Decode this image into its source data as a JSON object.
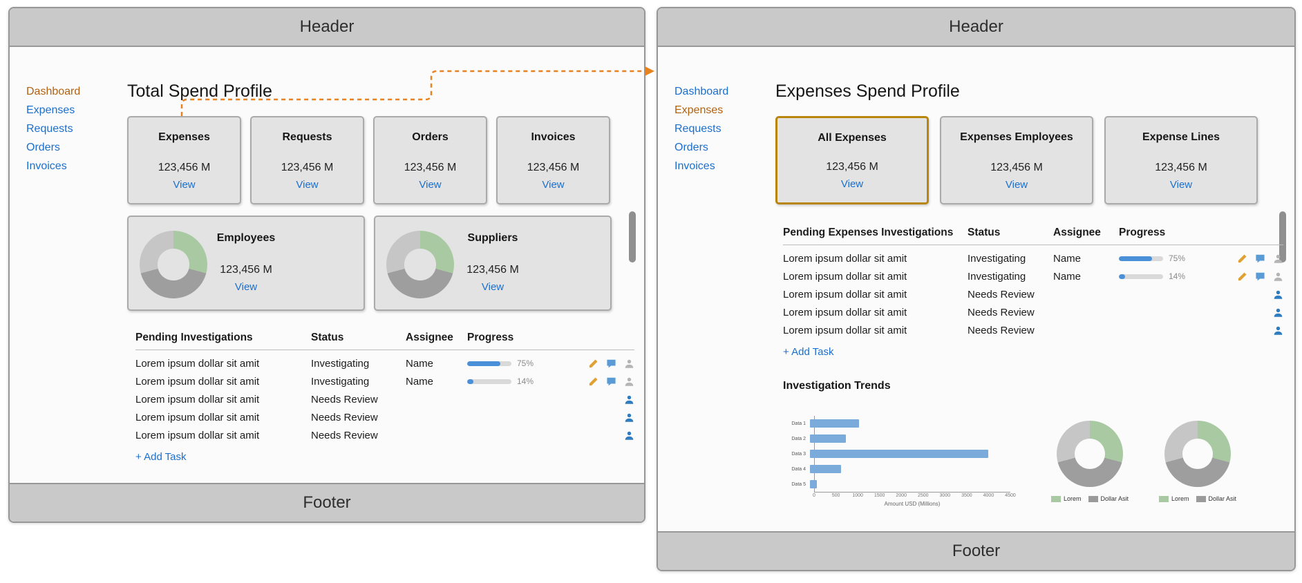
{
  "colors": {
    "link_blue": "#1a6fce",
    "active_nav_orange": "#b2620e",
    "highlight_card_border": "#b8860b",
    "progress_blue": "#4a90d9",
    "bar_blue": "#7aabdb",
    "donut_green": "#a9c9a2",
    "donut_gray": "#9a9a9a",
    "arrow_orange": "#e8821e"
  },
  "left_panel": {
    "header_label": "Header",
    "footer_label": "Footer",
    "sidebar": {
      "items": [
        {
          "label": "Dashboard",
          "active": true
        },
        {
          "label": "Expenses",
          "active": false
        },
        {
          "label": "Requests",
          "active": false
        },
        {
          "label": "Orders",
          "active": false
        },
        {
          "label": "Invoices",
          "active": false
        }
      ]
    },
    "title": "Total Spend Profile",
    "stat_cards": [
      {
        "title": "Expenses",
        "value": "123,456 M",
        "link": "View"
      },
      {
        "title": "Requests",
        "value": "123,456 M",
        "link": "View"
      },
      {
        "title": "Orders",
        "value": "123,456 M",
        "link": "View"
      },
      {
        "title": "Invoices",
        "value": "123,456 M",
        "link": "View"
      }
    ],
    "donut_cards": [
      {
        "title": "Employees",
        "value": "123,456 M",
        "link": "View"
      },
      {
        "title": "Suppliers",
        "value": "123,456 M",
        "link": "View"
      }
    ],
    "table": {
      "headers": [
        "Pending Investigations",
        "Status",
        "Assignee",
        "Progress"
      ],
      "rows": [
        {
          "task": "Lorem ipsum dollar sit amit",
          "status": "Investigating",
          "assignee": "Name",
          "progress": 75,
          "progress_label": "75%"
        },
        {
          "task": "Lorem ipsum dollar sit amit",
          "status": "Investigating",
          "assignee": "Name",
          "progress": 14,
          "progress_label": "14%"
        },
        {
          "task": "Lorem ipsum dollar sit amit",
          "status": "Needs Review",
          "assignee": "",
          "progress": null,
          "progress_label": ""
        },
        {
          "task": "Lorem ipsum dollar sit amit",
          "status": "Needs Review",
          "assignee": "",
          "progress": null,
          "progress_label": ""
        },
        {
          "task": "Lorem ipsum dollar sit amit",
          "status": "Needs Review",
          "assignee": "",
          "progress": null,
          "progress_label": ""
        }
      ],
      "add_task_label": "+ Add Task"
    }
  },
  "right_panel": {
    "header_label": "Header",
    "footer_label": "Footer",
    "sidebar": {
      "items": [
        {
          "label": "Dashboard",
          "active": false
        },
        {
          "label": "Expenses",
          "active": true
        },
        {
          "label": "Requests",
          "active": false
        },
        {
          "label": "Orders",
          "active": false
        },
        {
          "label": "Invoices",
          "active": false
        }
      ]
    },
    "title": "Expenses Spend Profile",
    "stat_cards": [
      {
        "title": "All Expenses",
        "value": "123,456 M",
        "link": "View",
        "highlighted": true
      },
      {
        "title": "Expenses Employees",
        "value": "123,456 M",
        "link": "View",
        "highlighted": false
      },
      {
        "title": "Expense Lines",
        "value": "123,456 M",
        "link": "View",
        "highlighted": false
      }
    ],
    "table": {
      "headers": [
        "Pending Expenses Investigations",
        "Status",
        "Assignee",
        "Progress"
      ],
      "rows": [
        {
          "task": "Lorem ipsum dollar sit amit",
          "status": "Investigating",
          "assignee": "Name",
          "progress": 75,
          "progress_label": "75%"
        },
        {
          "task": "Lorem ipsum dollar sit amit",
          "status": "Investigating",
          "assignee": "Name",
          "progress": 14,
          "progress_label": "14%"
        },
        {
          "task": "Lorem ipsum dollar sit amit",
          "status": "Needs Review",
          "assignee": "",
          "progress": null,
          "progress_label": ""
        },
        {
          "task": "Lorem ipsum dollar sit amit",
          "status": "Needs Review",
          "assignee": "",
          "progress": null,
          "progress_label": ""
        },
        {
          "task": "Lorem ipsum dollar sit amit",
          "status": "Needs Review",
          "assignee": "",
          "progress": null,
          "progress_label": ""
        }
      ],
      "add_task_label": "+ Add Task"
    },
    "trends": {
      "title": "Investigation Trends"
    }
  },
  "chart_data": [
    {
      "type": "bar",
      "orientation": "horizontal",
      "categories": [
        "Data 1",
        "Data 2",
        "Data 3",
        "Data 4",
        "Data 5"
      ],
      "values": [
        1100,
        800,
        4000,
        700,
        150
      ],
      "title": "",
      "xlabel": "Amount USD (Millions)",
      "ylabel": "",
      "xlim": [
        0,
        4500
      ],
      "xticks": [
        0,
        500,
        1000,
        1500,
        2000,
        2500,
        3000,
        3500,
        4000,
        4500
      ],
      "bar_color": "#7aabdb",
      "grid": false,
      "legend_position": "none"
    },
    {
      "type": "pie",
      "labels": [
        "Lorem",
        "Dollar Asit"
      ],
      "values": [
        30,
        70
      ],
      "colors": [
        "#a9c9a2",
        "#9a9a9a"
      ],
      "legend_position": "bottom"
    },
    {
      "type": "pie",
      "labels": [
        "Lorem",
        "Dollar Asit"
      ],
      "values": [
        30,
        70
      ],
      "colors": [
        "#a9c9a2",
        "#9a9a9a"
      ],
      "legend_position": "bottom"
    }
  ],
  "donut_segments": [
    {
      "color": "#a9c9a2",
      "deg": 105
    },
    {
      "color": "#9e9e9e",
      "deg": 150
    },
    {
      "color": "#c6c6c6",
      "deg": 105
    }
  ]
}
